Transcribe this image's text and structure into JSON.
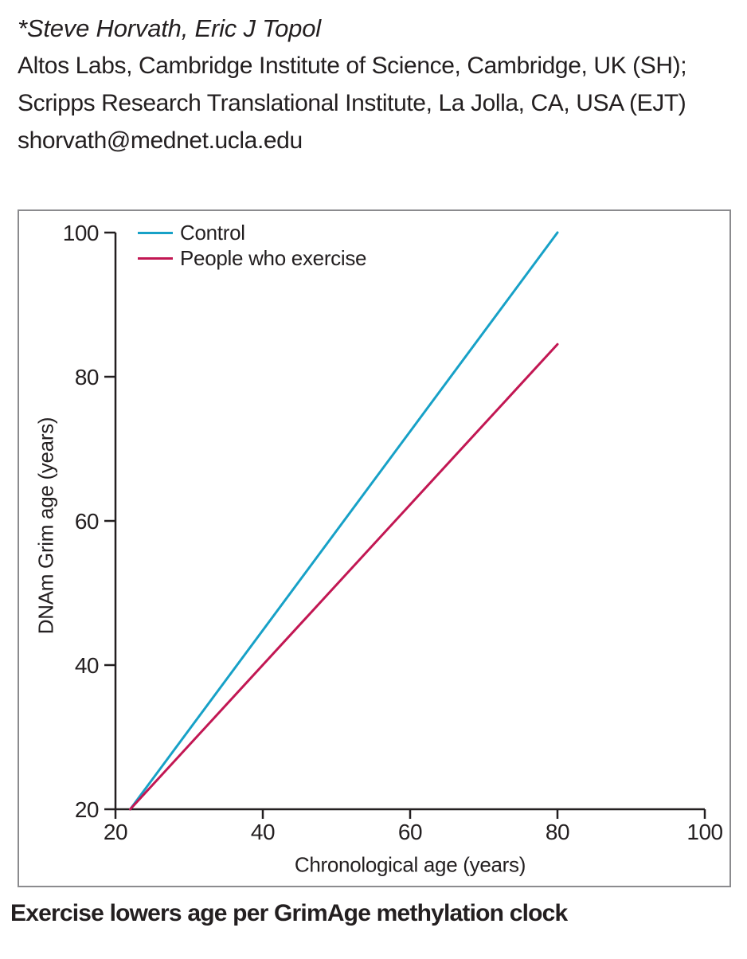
{
  "header": {
    "authors": "*Steve Horvath, Eric J Topol",
    "affiliation1": "Altos Labs, Cambridge Institute of Science, Cambridge, UK (SH);",
    "affiliation2": "Scripps Research Translational Institute, La Jolla, CA, USA (EJT)",
    "email": "shorvath@mednet.ucla.edu"
  },
  "caption": "Exercise lowers age per GrimAge methylation clock",
  "colors": {
    "text": "#231f20",
    "axis": "#231f20",
    "figure_border": "#8b8b8e",
    "control_line": "#17a1c7",
    "exercise_line": "#c21753"
  },
  "chart_data": {
    "type": "line",
    "title": "",
    "xlabel": "Chronological age (years)",
    "ylabel": "DNAm Grim age (years)",
    "xlim": [
      20,
      100
    ],
    "ylim": [
      20,
      100
    ],
    "xticks": [
      20,
      40,
      60,
      80,
      100
    ],
    "yticks": [
      20,
      40,
      60,
      80,
      100
    ],
    "grid": false,
    "legend_position": "top-left-inside",
    "series": [
      {
        "name": "Control",
        "color": "#17a1c7",
        "x": [
          22,
          80
        ],
        "y": [
          20,
          100
        ]
      },
      {
        "name": "People who exercise",
        "color": "#c21753",
        "x": [
          22,
          80
        ],
        "y": [
          20,
          84.5
        ]
      }
    ]
  }
}
